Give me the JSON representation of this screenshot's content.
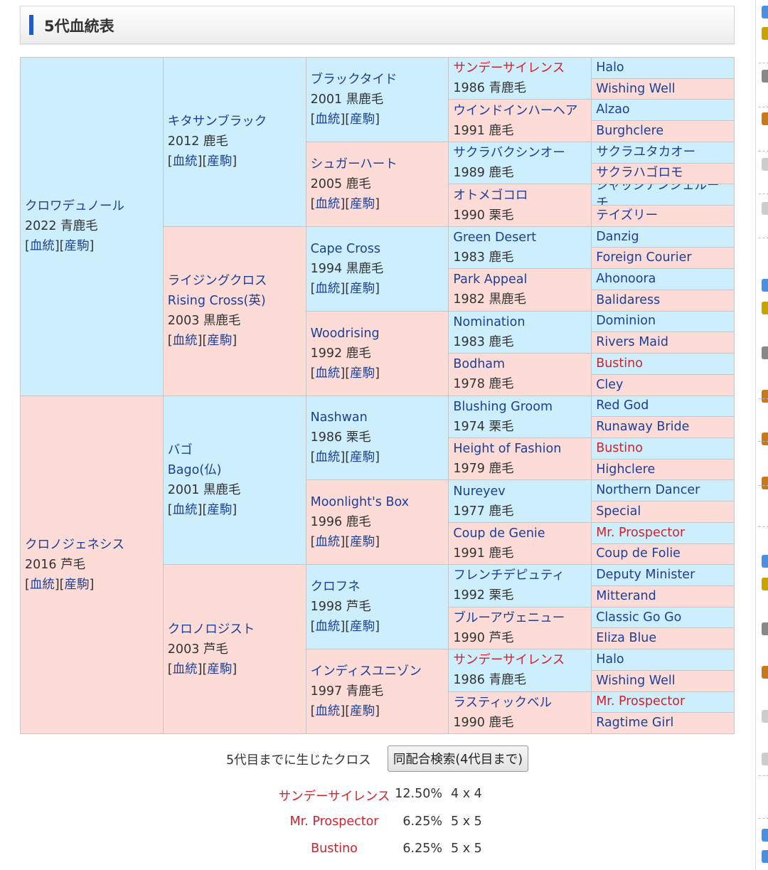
{
  "heading": {
    "title": "5代血統表"
  },
  "links": {
    "pedigree": "血統",
    "offspring": "産駒"
  },
  "pedigree": {
    "gen1": [
      {
        "name": "クロワデュノール",
        "year": "2022",
        "color": "青鹿毛"
      },
      {
        "name": "クロノジェネシス",
        "year": "2016",
        "color": "芦毛"
      }
    ],
    "gen2": [
      {
        "name": "キタサンブラック",
        "year": "2012",
        "color": "鹿毛"
      },
      {
        "name": "ライジングクロス",
        "alt": "Rising Cross(英)",
        "year": "2003",
        "color": "黒鹿毛"
      },
      {
        "name": "バゴ",
        "alt": "Bago(仏)",
        "year": "2001",
        "color": "黒鹿毛"
      },
      {
        "name": "クロノロジスト",
        "year": "2003",
        "color": "芦毛"
      }
    ],
    "gen3": [
      {
        "name": "ブラックタイド",
        "year": "2001",
        "color": "黒鹿毛"
      },
      {
        "name": "シュガーハート",
        "year": "2005",
        "color": "鹿毛"
      },
      {
        "name": "Cape Cross",
        "year": "1994",
        "color": "黒鹿毛"
      },
      {
        "name": "Woodrising",
        "year": "1992",
        "color": "鹿毛"
      },
      {
        "name": "Nashwan",
        "year": "1986",
        "color": "栗毛"
      },
      {
        "name": "Moonlight's Box",
        "year": "1996",
        "color": "鹿毛"
      },
      {
        "name": "クロフネ",
        "year": "1998",
        "color": "芦毛"
      },
      {
        "name": "インディスユニゾン",
        "year": "1997",
        "color": "青鹿毛"
      }
    ],
    "gen4": [
      {
        "name": "サンデーサイレンス",
        "year": "1986",
        "color": "青鹿毛",
        "cross": true
      },
      {
        "name": "ウインドインハーヘア",
        "year": "1991",
        "color": "鹿毛"
      },
      {
        "name": "サクラバクシンオー",
        "year": "1989",
        "color": "鹿毛"
      },
      {
        "name": "オトメゴコロ",
        "year": "1990",
        "color": "栗毛"
      },
      {
        "name": "Green Desert",
        "year": "1983",
        "color": "鹿毛"
      },
      {
        "name": "Park Appeal",
        "year": "1982",
        "color": "黒鹿毛"
      },
      {
        "name": "Nomination",
        "year": "1983",
        "color": "鹿毛"
      },
      {
        "name": "Bodham",
        "year": "1978",
        "color": "鹿毛"
      },
      {
        "name": "Blushing Groom",
        "year": "1974",
        "color": "栗毛"
      },
      {
        "name": "Height of Fashion",
        "year": "1979",
        "color": "鹿毛"
      },
      {
        "name": "Nureyev",
        "year": "1977",
        "color": "鹿毛"
      },
      {
        "name": "Coup de Genie",
        "year": "1991",
        "color": "鹿毛"
      },
      {
        "name": "フレンチデピュティ",
        "year": "1992",
        "color": "栗毛"
      },
      {
        "name": "ブルーアヴェニュー",
        "year": "1990",
        "color": "芦毛"
      },
      {
        "name": "サンデーサイレンス",
        "year": "1986",
        "color": "青鹿毛",
        "cross": true
      },
      {
        "name": "ラスティックベル",
        "year": "1990",
        "color": "鹿毛"
      }
    ],
    "gen5": [
      {
        "name": "Halo"
      },
      {
        "name": "Wishing Well"
      },
      {
        "name": "Alzao"
      },
      {
        "name": "Burghclere"
      },
      {
        "name": "サクラユタカオー"
      },
      {
        "name": "サクラハゴロモ"
      },
      {
        "name": "ジャッジアンジェルーチ"
      },
      {
        "name": "テイズリー"
      },
      {
        "name": "Danzig"
      },
      {
        "name": "Foreign Courier"
      },
      {
        "name": "Ahonoora"
      },
      {
        "name": "Balidaress"
      },
      {
        "name": "Dominion"
      },
      {
        "name": "Rivers Maid"
      },
      {
        "name": "Bustino",
        "cross": true
      },
      {
        "name": "Cley"
      },
      {
        "name": "Red God"
      },
      {
        "name": "Runaway Bride"
      },
      {
        "name": "Bustino",
        "cross": true
      },
      {
        "name": "Highclere"
      },
      {
        "name": "Northern Dancer"
      },
      {
        "name": "Special"
      },
      {
        "name": "Mr. Prospector",
        "cross": true
      },
      {
        "name": "Coup de Folie"
      },
      {
        "name": "Deputy Minister"
      },
      {
        "name": "Mitterand"
      },
      {
        "name": "Classic Go Go"
      },
      {
        "name": "Eliza Blue"
      },
      {
        "name": "Halo"
      },
      {
        "name": "Wishing Well"
      },
      {
        "name": "Mr. Prospector",
        "cross": true
      },
      {
        "name": "Ragtime Girl"
      }
    ]
  },
  "crosses": {
    "label": "5代目までに生じたクロス",
    "search_button": "同配合検索(4代目まで)",
    "rows": [
      {
        "name": "サンデーサイレンス",
        "percent": "12.50%",
        "gens": "4 x 4"
      },
      {
        "name": "Mr. Prospector",
        "percent": "6.25%",
        "gens": "5 x 5"
      },
      {
        "name": "Bustino",
        "percent": "6.25%",
        "gens": "5 x 5"
      }
    ]
  },
  "colors": {
    "sire_bg": "#cdeefd",
    "dam_bg": "#fddcd8",
    "link": "#1b3f9a",
    "cross": "#d4222b"
  }
}
